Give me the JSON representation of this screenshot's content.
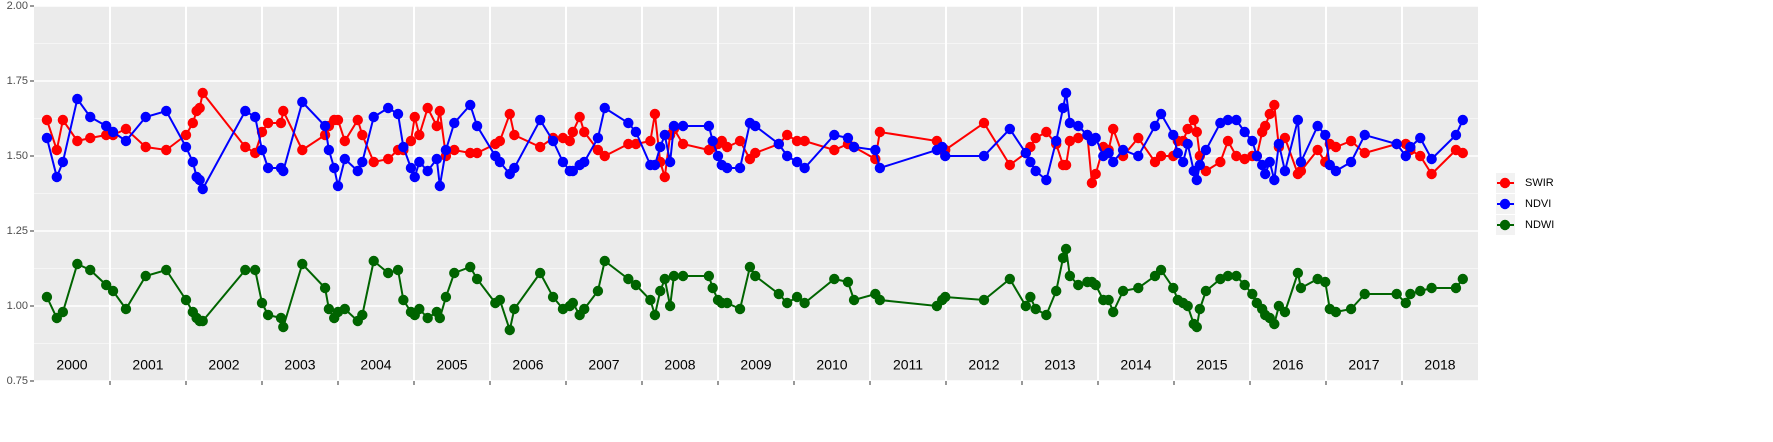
{
  "chart_data": {
    "type": "line",
    "xlim": [
      2000,
      2019
    ],
    "xticks": [
      2001,
      2002,
      2003,
      2004,
      2005,
      2006,
      2007,
      2008,
      2009,
      2010,
      2011,
      2012,
      2013,
      2014,
      2015,
      2016,
      2017,
      2018
    ],
    "year_labels": [
      "2000",
      "2001",
      "2002",
      "2003",
      "2004",
      "2005",
      "2006",
      "2007",
      "2008",
      "2009",
      "2010",
      "2011",
      "2012",
      "2013",
      "2014",
      "2015",
      "2016",
      "2017",
      "2018"
    ],
    "ylim": [
      0.75,
      2
    ],
    "yticks": [
      0.75,
      {
        "value": 1,
        "label": "1.00"
      },
      1.25,
      {
        "value": 1.5,
        "label": "1.50"
      },
      1.75,
      {
        "value": 2,
        "label": "2.00"
      }
    ],
    "grid": true,
    "legend_position": "right",
    "x": [
      2000.17,
      2000.3,
      2000.38,
      2000.57,
      2000.74,
      2000.95,
      2001.04,
      2001.21,
      2001.47,
      2001.74,
      2002.0,
      2002.09,
      2002.14,
      2002.18,
      2002.22,
      2002.78,
      2002.91,
      2003.0,
      2003.08,
      2003.25,
      2003.28,
      2003.53,
      2003.83,
      2003.88,
      2003.95,
      2004.0,
      2004.09,
      2004.26,
      2004.32,
      2004.47,
      2004.66,
      2004.79,
      2004.86,
      2004.96,
      2005.01,
      2005.07,
      2005.18,
      2005.3,
      2005.34,
      2005.42,
      2005.53,
      2005.74,
      2005.83,
      2006.07,
      2006.13,
      2006.26,
      2006.32,
      2006.66,
      2006.83,
      2006.96,
      2007.05,
      2007.09,
      2007.18,
      2007.24,
      2007.42,
      2007.51,
      2007.82,
      2007.92,
      2008.11,
      2008.17,
      2008.24,
      2008.3,
      2008.37,
      2008.42,
      2008.54,
      2008.88,
      2008.93,
      2009.0,
      2009.05,
      2009.12,
      2009.29,
      2009.42,
      2009.49,
      2009.8,
      2009.91,
      2010.04,
      2010.14,
      2010.53,
      2010.71,
      2010.79,
      2011.07,
      2011.13,
      2011.88,
      2011.95,
      2011.99,
      2012.5,
      2012.84,
      2013.05,
      2013.11,
      2013.18,
      2013.32,
      2013.45,
      2013.54,
      2013.58,
      2013.63,
      2013.74,
      2013.86,
      2013.92,
      2013.97,
      2014.07,
      2014.14,
      2014.2,
      2014.33,
      2014.53,
      2014.75,
      2014.83,
      2014.99,
      2015.05,
      2015.12,
      2015.18,
      2015.26,
      2015.3,
      2015.34,
      2015.42,
      2015.61,
      2015.71,
      2015.82,
      2015.93,
      2016.03,
      2016.09,
      2016.16,
      2016.2,
      2016.26,
      2016.32,
      2016.38,
      2016.46,
      2016.63,
      2016.67,
      2016.89,
      2016.99,
      2017.05,
      2017.13,
      2017.33,
      2017.51,
      2017.93,
      2018.05,
      2018.11,
      2018.24,
      2018.39,
      2018.71,
      2018.8
    ],
    "series": [
      {
        "name": "SWIR",
        "color": "#ff0000",
        "values": [
          1.62,
          1.52,
          1.62,
          1.55,
          1.56,
          1.57,
          1.57,
          1.59,
          1.53,
          1.52,
          1.57,
          1.61,
          1.65,
          1.66,
          1.71,
          1.53,
          1.51,
          1.58,
          1.61,
          1.61,
          1.65,
          1.52,
          1.57,
          1.6,
          1.62,
          1.62,
          1.55,
          1.62,
          1.57,
          1.48,
          1.49,
          1.52,
          1.52,
          1.55,
          1.63,
          1.57,
          1.66,
          1.6,
          1.65,
          1.5,
          1.52,
          1.51,
          1.51,
          1.54,
          1.55,
          1.64,
          1.57,
          1.53,
          1.56,
          1.56,
          1.55,
          1.58,
          1.63,
          1.58,
          1.52,
          1.5,
          1.54,
          1.54,
          1.55,
          1.64,
          1.48,
          1.43,
          1.57,
          1.59,
          1.54,
          1.52,
          1.53,
          1.54,
          1.55,
          1.53,
          1.55,
          1.49,
          1.51,
          1.54,
          1.57,
          1.55,
          1.55,
          1.52,
          1.54,
          1.53,
          1.49,
          1.58,
          1.55,
          1.52,
          1.52,
          1.61,
          1.47,
          1.51,
          1.53,
          1.56,
          1.58,
          1.54,
          1.47,
          1.47,
          1.55,
          1.56,
          1.57,
          1.41,
          1.44,
          1.53,
          1.52,
          1.59,
          1.5,
          1.56,
          1.48,
          1.5,
          1.5,
          1.55,
          1.55,
          1.59,
          1.62,
          1.58,
          1.5,
          1.45,
          1.48,
          1.55,
          1.5,
          1.49,
          1.5,
          1.5,
          1.58,
          1.6,
          1.64,
          1.67,
          1.53,
          1.56,
          1.44,
          1.45,
          1.52,
          1.48,
          1.54,
          1.53,
          1.55,
          1.51,
          1.54,
          1.54,
          1.52,
          1.5,
          1.44,
          1.52,
          1.51
        ]
      },
      {
        "name": "NDVI",
        "color": "#0000ff",
        "values": [
          1.56,
          1.43,
          1.48,
          1.69,
          1.63,
          1.6,
          1.58,
          1.55,
          1.63,
          1.65,
          1.53,
          1.48,
          1.43,
          1.42,
          1.39,
          1.65,
          1.63,
          1.52,
          1.46,
          1.46,
          1.45,
          1.68,
          1.6,
          1.52,
          1.46,
          1.4,
          1.49,
          1.45,
          1.48,
          1.63,
          1.66,
          1.64,
          1.53,
          1.46,
          1.43,
          1.48,
          1.45,
          1.49,
          1.4,
          1.52,
          1.61,
          1.67,
          1.6,
          1.5,
          1.48,
          1.44,
          1.46,
          1.62,
          1.55,
          1.48,
          1.45,
          1.45,
          1.47,
          1.48,
          1.56,
          1.66,
          1.61,
          1.58,
          1.47,
          1.47,
          1.53,
          1.57,
          1.48,
          1.6,
          1.6,
          1.6,
          1.55,
          1.5,
          1.47,
          1.46,
          1.46,
          1.61,
          1.6,
          1.54,
          1.5,
          1.48,
          1.46,
          1.57,
          1.56,
          1.53,
          1.52,
          1.46,
          1.52,
          1.53,
          1.5,
          1.5,
          1.59,
          1.51,
          1.48,
          1.45,
          1.42,
          1.55,
          1.66,
          1.71,
          1.61,
          1.6,
          1.57,
          1.55,
          1.56,
          1.5,
          1.51,
          1.48,
          1.52,
          1.5,
          1.6,
          1.64,
          1.57,
          1.51,
          1.48,
          1.54,
          1.45,
          1.42,
          1.47,
          1.52,
          1.61,
          1.62,
          1.62,
          1.58,
          1.55,
          1.5,
          1.47,
          1.44,
          1.48,
          1.42,
          1.54,
          1.45,
          1.62,
          1.48,
          1.6,
          1.57,
          1.47,
          1.45,
          1.48,
          1.57,
          1.54,
          1.5,
          1.53,
          1.56,
          1.49,
          1.57,
          1.62
        ]
      },
      {
        "name": "NDWI",
        "color": "#006400",
        "values": [
          1.03,
          0.96,
          0.98,
          1.14,
          1.12,
          1.07,
          1.05,
          0.99,
          1.1,
          1.12,
          1.02,
          0.98,
          0.96,
          0.95,
          0.95,
          1.12,
          1.12,
          1.01,
          0.97,
          0.96,
          0.93,
          1.14,
          1.06,
          0.99,
          0.96,
          0.98,
          0.99,
          0.95,
          0.97,
          1.15,
          1.11,
          1.12,
          1.02,
          0.98,
          0.97,
          0.99,
          0.96,
          0.98,
          0.96,
          1.03,
          1.11,
          1.13,
          1.09,
          1.01,
          1.02,
          0.92,
          0.99,
          1.11,
          1.03,
          0.99,
          1.0,
          1.01,
          0.97,
          0.99,
          1.05,
          1.15,
          1.09,
          1.07,
          1.02,
          0.97,
          1.05,
          1.09,
          1.0,
          1.1,
          1.1,
          1.1,
          1.06,
          1.02,
          1.01,
          1.01,
          0.99,
          1.13,
          1.1,
          1.04,
          1.01,
          1.03,
          1.01,
          1.09,
          1.08,
          1.02,
          1.04,
          1.02,
          1.0,
          1.02,
          1.03,
          1.02,
          1.09,
          1.0,
          1.03,
          0.99,
          0.97,
          1.05,
          1.16,
          1.19,
          1.1,
          1.07,
          1.08,
          1.08,
          1.07,
          1.02,
          1.02,
          0.98,
          1.05,
          1.06,
          1.1,
          1.12,
          1.06,
          1.02,
          1.01,
          1.0,
          0.94,
          0.93,
          0.99,
          1.05,
          1.09,
          1.1,
          1.1,
          1.07,
          1.04,
          1.01,
          0.99,
          0.97,
          0.96,
          0.94,
          1.0,
          0.98,
          1.11,
          1.06,
          1.09,
          1.08,
          0.99,
          0.98,
          0.99,
          1.04,
          1.04,
          1.01,
          1.04,
          1.05,
          1.06,
          1.06,
          1.09
        ]
      }
    ]
  }
}
